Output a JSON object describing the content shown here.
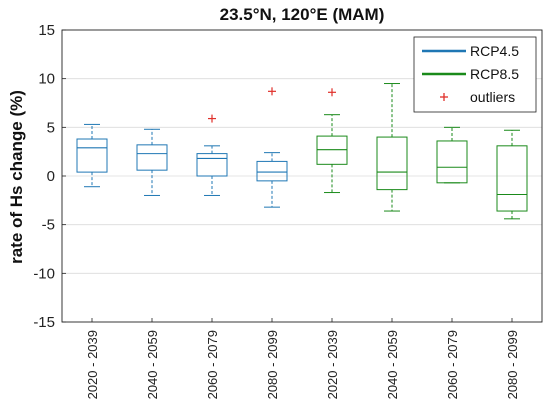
{
  "chart_data": {
    "type": "box",
    "title": "23.5°N, 120°E (MAM)",
    "ylabel": "rate of Hs change (%)",
    "xlabel": "",
    "ylim": [
      -15,
      15
    ],
    "yticks": [
      15,
      10,
      5,
      0,
      -5,
      -10,
      -15
    ],
    "grid": "horizontal",
    "legend_position": "top-right",
    "legend": [
      {
        "label": "RCP4.5",
        "kind": "line",
        "color": "#1f77b4"
      },
      {
        "label": "RCP8.5",
        "kind": "line",
        "color": "#1a8a1a"
      },
      {
        "label": "outliers",
        "kind": "plus",
        "color": "#e0302a"
      }
    ],
    "categories": [
      "2020 - 2039",
      "2040 - 2059",
      "2060 - 2079",
      "2080 - 2099",
      "2020 - 2039",
      "2040 - 2059",
      "2060 - 2079",
      "2080 - 2099"
    ],
    "boxes": [
      {
        "category": "2020 - 2039",
        "series": "RCP4.5",
        "whisker_low": -1.1,
        "q1": 0.4,
        "median": 2.9,
        "q3": 3.8,
        "whisker_high": 5.3,
        "outliers": []
      },
      {
        "category": "2040 - 2059",
        "series": "RCP4.5",
        "whisker_low": -2.0,
        "q1": 0.6,
        "median": 2.3,
        "q3": 3.2,
        "whisker_high": 4.8,
        "outliers": []
      },
      {
        "category": "2060 - 2079",
        "series": "RCP4.5",
        "whisker_low": -2.0,
        "q1": 0.0,
        "median": 1.8,
        "q3": 2.3,
        "whisker_high": 3.1,
        "outliers": [
          5.9
        ]
      },
      {
        "category": "2080 - 2099",
        "series": "RCP4.5",
        "whisker_low": -3.2,
        "q1": -0.5,
        "median": 0.4,
        "q3": 1.5,
        "whisker_high": 2.4,
        "outliers": [
          8.7
        ]
      },
      {
        "category": "2020 - 2039",
        "series": "RCP8.5",
        "whisker_low": -1.7,
        "q1": 1.2,
        "median": 2.7,
        "q3": 4.1,
        "whisker_high": 6.3,
        "outliers": [
          8.6
        ]
      },
      {
        "category": "2040 - 2059",
        "series": "RCP8.5",
        "whisker_low": -3.6,
        "q1": -1.4,
        "median": 0.4,
        "q3": 4.0,
        "whisker_high": 9.5,
        "outliers": []
      },
      {
        "category": "2060 - 2079",
        "series": "RCP8.5",
        "whisker_low": -0.7,
        "q1": -0.7,
        "median": 0.9,
        "q3": 3.6,
        "whisker_high": 5.0,
        "outliers": []
      },
      {
        "category": "2080 - 2099",
        "series": "RCP8.5",
        "whisker_low": -4.4,
        "q1": -3.6,
        "median": -1.9,
        "q3": 3.1,
        "whisker_high": 4.7,
        "outliers": []
      }
    ]
  }
}
